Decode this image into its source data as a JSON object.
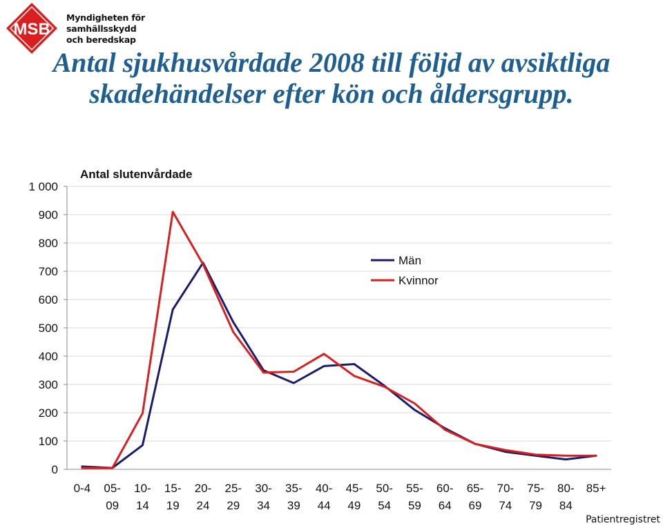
{
  "logo": {
    "text": "MSB",
    "org_lines": [
      "Myndigheten för",
      "samhällsskydd",
      "och beredskap"
    ],
    "color": "#D7201F"
  },
  "title": "Antal sjukhusvårdade 2008 till följd av avsiktliga skadehändelser efter kön och åldersgrupp.",
  "source": "Patientregistret",
  "chart_data": {
    "type": "line",
    "ylabel": "Antal slutenvårdade",
    "ylim": [
      0,
      1000
    ],
    "yticks": [
      0,
      100,
      200,
      300,
      400,
      500,
      600,
      700,
      800,
      900,
      1000
    ],
    "ytick_labels": [
      "0",
      "100",
      "200",
      "300",
      "400",
      "500",
      "600",
      "700",
      "800",
      "900",
      "1 000"
    ],
    "grid": true,
    "legend_position": "upper-right",
    "categories": [
      [
        "0-4"
      ],
      [
        "05-",
        "09"
      ],
      [
        "10-",
        "14"
      ],
      [
        "15-",
        "19"
      ],
      [
        "20-",
        "24"
      ],
      [
        "25-",
        "29"
      ],
      [
        "30-",
        "34"
      ],
      [
        "35-",
        "39"
      ],
      [
        "40-",
        "44"
      ],
      [
        "45-",
        "49"
      ],
      [
        "50-",
        "54"
      ],
      [
        "55-",
        "59"
      ],
      [
        "60-",
        "64"
      ],
      [
        "65-",
        "69"
      ],
      [
        "70-",
        "74"
      ],
      [
        "75-",
        "79"
      ],
      [
        "80-",
        "84"
      ],
      [
        "85+"
      ]
    ],
    "series": [
      {
        "name": "Män",
        "color": "#1A1A6E",
        "values": [
          10,
          5,
          85,
          565,
          730,
          520,
          350,
          305,
          365,
          372,
          295,
          210,
          145,
          90,
          62,
          48,
          35,
          48
        ]
      },
      {
        "name": "Kvinnor",
        "color": "#D7201F",
        "values": [
          5,
          5,
          198,
          910,
          725,
          485,
          342,
          345,
          408,
          330,
          292,
          233,
          140,
          90,
          68,
          52,
          48,
          48
        ]
      }
    ]
  }
}
